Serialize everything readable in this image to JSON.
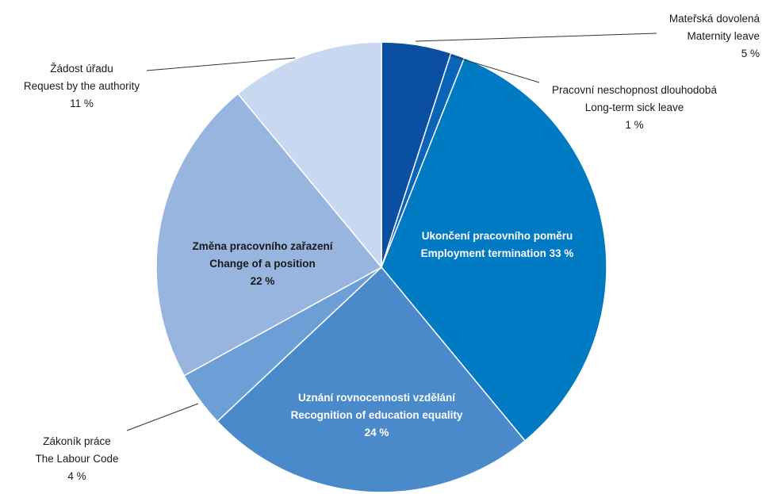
{
  "chart_data": {
    "type": "pie",
    "title": "",
    "slices": [
      {
        "lines": [
          "Mateřská dovolená",
          "Maternity leave",
          "5 %"
        ],
        "value": 5,
        "color": "#0B4FA0",
        "label_inside": false
      },
      {
        "lines": [
          "Pracovní neschopnost dlouhodobá",
          "Long-term sick leave",
          "1 %"
        ],
        "value": 1,
        "color": "#0A65B8",
        "label_inside": false
      },
      {
        "lines": [
          "Ukončení pracovního poměru",
          "Employment termination 33 %"
        ],
        "value": 33,
        "color": "#007AC3",
        "label_inside": true
      },
      {
        "lines": [
          "Uznání rovnocennosti vzdělání",
          "Recognition of education equality",
          "24 %"
        ],
        "value": 24,
        "color": "#4A8ACB",
        "label_inside": true
      },
      {
        "lines": [
          "Zákoník práce",
          "The Labour Code",
          "4 %"
        ],
        "value": 4,
        "color": "#6D9ED5",
        "label_inside": false
      },
      {
        "lines": [
          "Změna pracovního zařazení",
          "Change of a position",
          "22 %"
        ],
        "value": 22,
        "color": "#97B5DF",
        "label_inside": true
      },
      {
        "lines": [
          "Žádost úřadu",
          "Request by the authority",
          "11 %"
        ],
        "value": 11,
        "color": "#C9D8F1",
        "label_inside": false
      }
    ]
  }
}
